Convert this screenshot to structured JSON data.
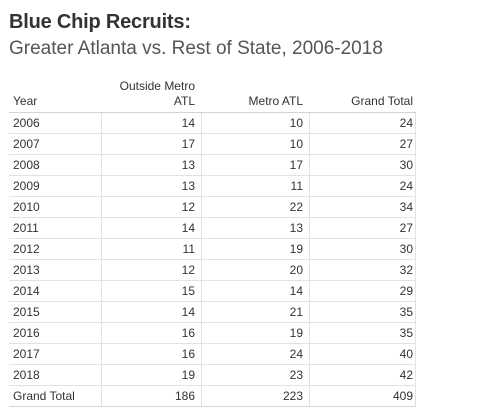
{
  "title": "Blue Chip Recruits:",
  "subtitle": "Greater Atlanta vs. Rest of State, 2006-2018",
  "table": {
    "headers": {
      "year": "Year",
      "outside_line1": "Outside Metro",
      "outside_line2": "ATL",
      "metro": "Metro ATL",
      "grand_total": "Grand Total"
    },
    "rows": [
      {
        "year": "2006",
        "outside": "14",
        "metro": "10",
        "total": "24"
      },
      {
        "year": "2007",
        "outside": "17",
        "metro": "10",
        "total": "27"
      },
      {
        "year": "2008",
        "outside": "13",
        "metro": "17",
        "total": "30"
      },
      {
        "year": "2009",
        "outside": "13",
        "metro": "11",
        "total": "24"
      },
      {
        "year": "2010",
        "outside": "12",
        "metro": "22",
        "total": "34"
      },
      {
        "year": "2011",
        "outside": "14",
        "metro": "13",
        "total": "27"
      },
      {
        "year": "2012",
        "outside": "11",
        "metro": "19",
        "total": "30"
      },
      {
        "year": "2013",
        "outside": "12",
        "metro": "20",
        "total": "32"
      },
      {
        "year": "2014",
        "outside": "15",
        "metro": "14",
        "total": "29"
      },
      {
        "year": "2015",
        "outside": "14",
        "metro": "21",
        "total": "35"
      },
      {
        "year": "2016",
        "outside": "16",
        "metro": "19",
        "total": "35"
      },
      {
        "year": "2017",
        "outside": "16",
        "metro": "24",
        "total": "40"
      },
      {
        "year": "2018",
        "outside": "19",
        "metro": "23",
        "total": "42"
      }
    ],
    "grand_total": {
      "label": "Grand Total",
      "outside": "186",
      "metro": "223",
      "total": "409"
    }
  },
  "chart_data": {
    "type": "table",
    "title": "Blue Chip Recruits:",
    "subtitle": "Greater Atlanta vs. Rest of State, 2006-2018",
    "columns": [
      "Year",
      "Outside Metro ATL",
      "Metro ATL",
      "Grand Total"
    ],
    "categories": [
      "2006",
      "2007",
      "2008",
      "2009",
      "2010",
      "2011",
      "2012",
      "2013",
      "2014",
      "2015",
      "2016",
      "2017",
      "2018"
    ],
    "series": [
      {
        "name": "Outside Metro ATL",
        "values": [
          14,
          17,
          13,
          13,
          12,
          14,
          11,
          12,
          15,
          14,
          16,
          16,
          19
        ]
      },
      {
        "name": "Metro ATL",
        "values": [
          10,
          10,
          17,
          11,
          22,
          13,
          19,
          20,
          14,
          21,
          19,
          24,
          23
        ]
      },
      {
        "name": "Grand Total",
        "values": [
          24,
          27,
          30,
          24,
          34,
          27,
          30,
          32,
          29,
          35,
          35,
          40,
          42
        ]
      }
    ],
    "totals": {
      "Outside Metro ATL": 186,
      "Metro ATL": 223,
      "Grand Total": 409
    }
  }
}
